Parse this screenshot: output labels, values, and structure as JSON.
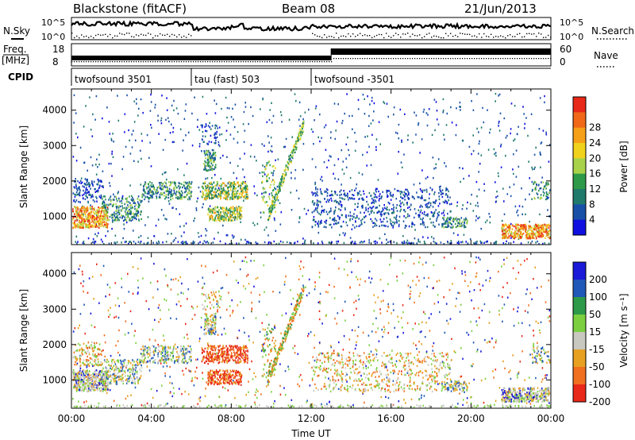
{
  "header": {
    "station": "Blackstone (fitACF)",
    "beam": "Beam 08",
    "date": "21/Jun/2013"
  },
  "left_labels": {
    "nsky": "N.Sky",
    "freq": "Freq.",
    "freq_unit": "[MHz]",
    "cpid": "CPID"
  },
  "right_labels": {
    "nsearch": "N.Search",
    "nave": "Nave"
  },
  "nsky_axis": {
    "top": "10^5",
    "bottom": "10^0"
  },
  "nsearch_axis": {
    "top": "10^5",
    "bottom": "10^0"
  },
  "freq_axis": {
    "top": "18",
    "bottom": "8"
  },
  "nave_axis": {
    "top": "60",
    "bottom": "0"
  },
  "cpid_segments": [
    {
      "label": "twofsound 3501",
      "start_hour": 0,
      "end_hour": 6
    },
    {
      "label": "tau (fast) 503",
      "start_hour": 6,
      "end_hour": 12
    },
    {
      "label": "twofsound -3501",
      "start_hour": 12,
      "end_hour": 24
    }
  ],
  "time_axis": {
    "label": "Time UT",
    "ticks": [
      "00:00",
      "04:00",
      "08:00",
      "12:00",
      "16:00",
      "20:00",
      "00:00"
    ]
  },
  "chart_data": [
    {
      "type": "heatmap",
      "title": "",
      "xlabel": "Time UT",
      "ylabel": "Slant Range [km]",
      "xlim": [
        0,
        24
      ],
      "ylim": [
        200,
        4600
      ],
      "yticks": [
        "1000",
        "2000",
        "3000",
        "4000"
      ],
      "colorbar_label": "Power [dB]",
      "colorbar_ticks": [
        "4",
        "8",
        "12",
        "16",
        "20",
        "24",
        "28"
      ],
      "colors": [
        "#1010e0",
        "#1850a8",
        "#1f7a6c",
        "#2c9a48",
        "#a8d24a",
        "#f0d21c",
        "#f5a018",
        "#f06818",
        "#e82818"
      ]
    },
    {
      "type": "heatmap",
      "title": "",
      "xlabel": "Time UT",
      "ylabel": "Slant Range [km]",
      "xlim": [
        0,
        24
      ],
      "ylim": [
        200,
        4600
      ],
      "yticks": [
        "1000",
        "2000",
        "3000",
        "4000"
      ],
      "colorbar_label": "Velocity [m s⁻¹]",
      "colorbar_ticks": [
        "200",
        "100",
        "50",
        "15",
        "-15",
        "-50",
        "-100",
        "-200"
      ],
      "colors": [
        "#1a1ad8",
        "#1f58b8",
        "#2c9a48",
        "#7cd040",
        "#c8c8c0",
        "#e8a020",
        "#f07020",
        "#e82818"
      ]
    }
  ]
}
